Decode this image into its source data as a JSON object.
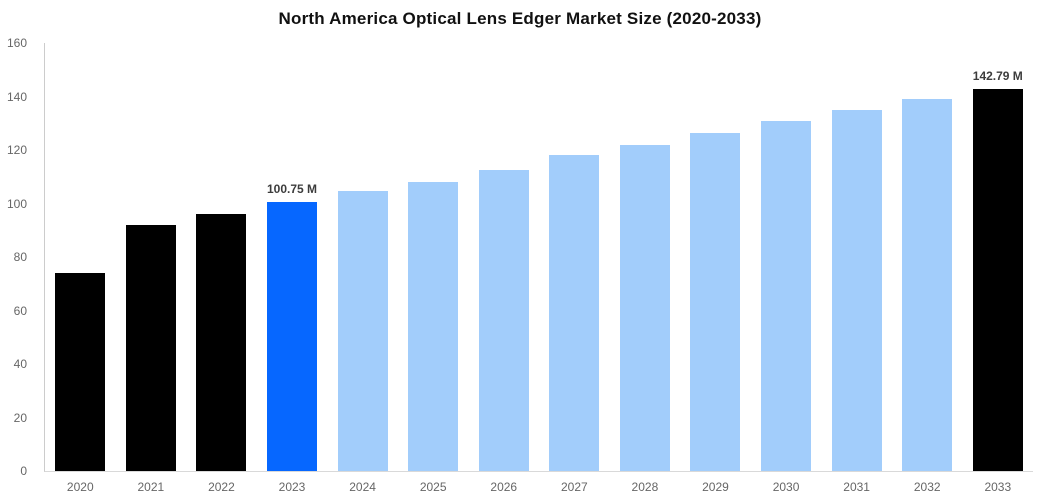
{
  "chart_data": {
    "type": "bar",
    "title": "North America Optical Lens Edger Market Size (2020-2033)",
    "xlabel": "",
    "ylabel": "",
    "categories": [
      "2020",
      "2021",
      "2022",
      "2023",
      "2024",
      "2025",
      "2026",
      "2027",
      "2028",
      "2029",
      "2030",
      "2031",
      "2032",
      "2033"
    ],
    "values": [
      74,
      92,
      96,
      100.75,
      104.5,
      108,
      112.5,
      118,
      122,
      126.5,
      131,
      135,
      139,
      142.79
    ],
    "unit": "M",
    "ylim": [
      0,
      160
    ],
    "ytick_step": 20,
    "yticks": [
      "0",
      "20",
      "40",
      "60",
      "80",
      "100",
      "120",
      "140",
      "160"
    ],
    "grid": false,
    "legend": null,
    "bar_color_roles": [
      "dark",
      "dark",
      "dark",
      "highlight",
      "light",
      "light",
      "light",
      "light",
      "light",
      "light",
      "light",
      "light",
      "light",
      "dark"
    ],
    "colors": {
      "dark": "#000000",
      "highlight": "#0667ff",
      "light": "#a2cdfb",
      "axis_line": "#cccccc",
      "tick_label": "#666666",
      "value_label": "#3c3c3c",
      "title": "#111111"
    },
    "annotations": {
      "2023": "100.75 M",
      "2033": "142.79 M"
    }
  }
}
